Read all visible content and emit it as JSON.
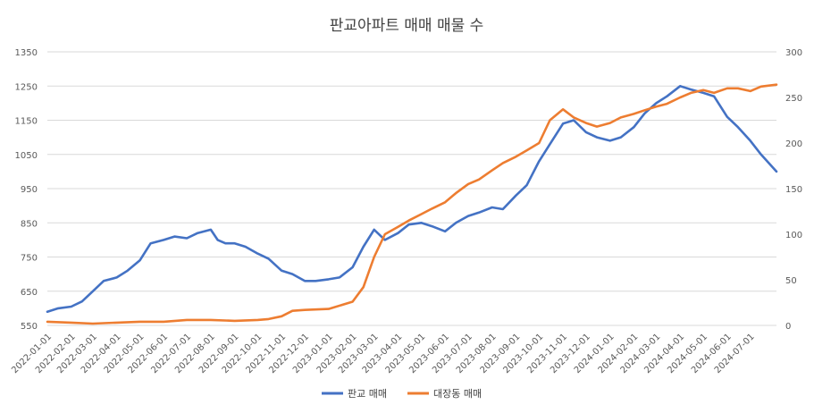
{
  "chart_data": {
    "type": "line",
    "title": "판교아파트 매매 매물 수",
    "xlabel": "",
    "ylabel": "",
    "y2label": "",
    "ylim": [
      550,
      1350
    ],
    "y2lim": [
      0,
      300
    ],
    "yticks": [
      "1350",
      "1250",
      "1150",
      "1050",
      "950",
      "850",
      "750",
      "650",
      "550"
    ],
    "y2ticks": [
      "300",
      "250",
      "200",
      "150",
      "100",
      "50",
      "0"
    ],
    "x_tick_labels": [
      "2022-01-01",
      "2022-02-01",
      "2022-03-01",
      "2022-04-01",
      "2022-05-01",
      "2022-06-01",
      "2022-07-01",
      "2022-08-01",
      "2022-09-01",
      "2022-10-01",
      "2022-11-01",
      "2022-12-01",
      "2023-01-01",
      "2023-02-01",
      "2023-03-01",
      "2023-04-01",
      "2023-05-01",
      "2023-06-01",
      "2023-07-01",
      "2023-08-01",
      "2023-09-01",
      "2023-10-01",
      "2023-11-01",
      "2023-12-01",
      "2024-01-01",
      "2024-02-01",
      "2024-03-01",
      "2024-04-01",
      "2024-05-01",
      "2024-06-01",
      "2024-07-01"
    ],
    "x_range": [
      "2022-01-01",
      "2024-08-04"
    ],
    "grid": true,
    "legend_position": "bottom",
    "series": [
      {
        "name": "판교 매매",
        "axis": "left",
        "color": "#4472C4",
        "points": [
          [
            "2022-01-01",
            590
          ],
          [
            "2022-01-15",
            600
          ],
          [
            "2022-02-01",
            605
          ],
          [
            "2022-02-15",
            620
          ],
          [
            "2022-03-01",
            650
          ],
          [
            "2022-03-15",
            680
          ],
          [
            "2022-04-01",
            690
          ],
          [
            "2022-04-15",
            710
          ],
          [
            "2022-05-01",
            740
          ],
          [
            "2022-05-15",
            790
          ],
          [
            "2022-06-01",
            800
          ],
          [
            "2022-06-15",
            810
          ],
          [
            "2022-07-01",
            805
          ],
          [
            "2022-07-15",
            820
          ],
          [
            "2022-08-01",
            830
          ],
          [
            "2022-08-10",
            800
          ],
          [
            "2022-08-20",
            790
          ],
          [
            "2022-09-01",
            790
          ],
          [
            "2022-09-15",
            780
          ],
          [
            "2022-10-01",
            760
          ],
          [
            "2022-10-15",
            745
          ],
          [
            "2022-11-01",
            710
          ],
          [
            "2022-11-15",
            700
          ],
          [
            "2022-12-01",
            680
          ],
          [
            "2022-12-15",
            680
          ],
          [
            "2023-01-01",
            685
          ],
          [
            "2023-01-15",
            690
          ],
          [
            "2023-02-01",
            720
          ],
          [
            "2023-02-15",
            780
          ],
          [
            "2023-03-01",
            830
          ],
          [
            "2023-03-15",
            800
          ],
          [
            "2023-04-01",
            820
          ],
          [
            "2023-04-15",
            845
          ],
          [
            "2023-05-01",
            850
          ],
          [
            "2023-05-15",
            840
          ],
          [
            "2023-06-01",
            825
          ],
          [
            "2023-06-15",
            850
          ],
          [
            "2023-07-01",
            870
          ],
          [
            "2023-07-15",
            880
          ],
          [
            "2023-08-01",
            895
          ],
          [
            "2023-08-15",
            890
          ],
          [
            "2023-09-01",
            930
          ],
          [
            "2023-09-15",
            960
          ],
          [
            "2023-10-01",
            1030
          ],
          [
            "2023-10-15",
            1080
          ],
          [
            "2023-11-01",
            1140
          ],
          [
            "2023-11-15",
            1150
          ],
          [
            "2023-12-01",
            1115
          ],
          [
            "2023-12-15",
            1100
          ],
          [
            "2024-01-01",
            1090
          ],
          [
            "2024-01-15",
            1100
          ],
          [
            "2024-02-01",
            1130
          ],
          [
            "2024-02-15",
            1170
          ],
          [
            "2024-03-01",
            1200
          ],
          [
            "2024-03-15",
            1220
          ],
          [
            "2024-04-01",
            1250
          ],
          [
            "2024-04-15",
            1240
          ],
          [
            "2024-05-01",
            1230
          ],
          [
            "2024-05-15",
            1220
          ],
          [
            "2024-06-01",
            1160
          ],
          [
            "2024-06-15",
            1130
          ],
          [
            "2024-07-01",
            1090
          ],
          [
            "2024-07-15",
            1050
          ],
          [
            "2024-08-04",
            1000
          ]
        ]
      },
      {
        "name": "대장동 매매",
        "axis": "right",
        "color": "#ED7D31",
        "points": [
          [
            "2022-01-01",
            4
          ],
          [
            "2022-02-01",
            3
          ],
          [
            "2022-03-01",
            2
          ],
          [
            "2022-04-01",
            3
          ],
          [
            "2022-05-01",
            4
          ],
          [
            "2022-06-01",
            4
          ],
          [
            "2022-07-01",
            6
          ],
          [
            "2022-08-01",
            6
          ],
          [
            "2022-09-01",
            5
          ],
          [
            "2022-10-01",
            6
          ],
          [
            "2022-10-15",
            7
          ],
          [
            "2022-11-01",
            10
          ],
          [
            "2022-11-15",
            16
          ],
          [
            "2022-12-01",
            17
          ],
          [
            "2023-01-01",
            18
          ],
          [
            "2023-02-01",
            26
          ],
          [
            "2023-02-15",
            42
          ],
          [
            "2023-03-01",
            75
          ],
          [
            "2023-03-15",
            100
          ],
          [
            "2023-04-01",
            108
          ],
          [
            "2023-04-15",
            115
          ],
          [
            "2023-05-01",
            122
          ],
          [
            "2023-05-15",
            128
          ],
          [
            "2023-06-01",
            135
          ],
          [
            "2023-06-15",
            145
          ],
          [
            "2023-07-01",
            155
          ],
          [
            "2023-07-15",
            160
          ],
          [
            "2023-08-01",
            170
          ],
          [
            "2023-08-15",
            178
          ],
          [
            "2023-09-01",
            185
          ],
          [
            "2023-09-15",
            192
          ],
          [
            "2023-10-01",
            200
          ],
          [
            "2023-10-15",
            225
          ],
          [
            "2023-11-01",
            237
          ],
          [
            "2023-11-15",
            228
          ],
          [
            "2023-12-01",
            222
          ],
          [
            "2023-12-15",
            218
          ],
          [
            "2024-01-01",
            222
          ],
          [
            "2024-01-15",
            228
          ],
          [
            "2024-02-01",
            232
          ],
          [
            "2024-02-15",
            236
          ],
          [
            "2024-03-01",
            240
          ],
          [
            "2024-03-15",
            243
          ],
          [
            "2024-04-01",
            250
          ],
          [
            "2024-04-15",
            255
          ],
          [
            "2024-05-01",
            258
          ],
          [
            "2024-05-15",
            255
          ],
          [
            "2024-06-01",
            260
          ],
          [
            "2024-06-15",
            260
          ],
          [
            "2024-07-01",
            257
          ],
          [
            "2024-07-15",
            262
          ],
          [
            "2024-08-04",
            264
          ]
        ]
      }
    ]
  }
}
